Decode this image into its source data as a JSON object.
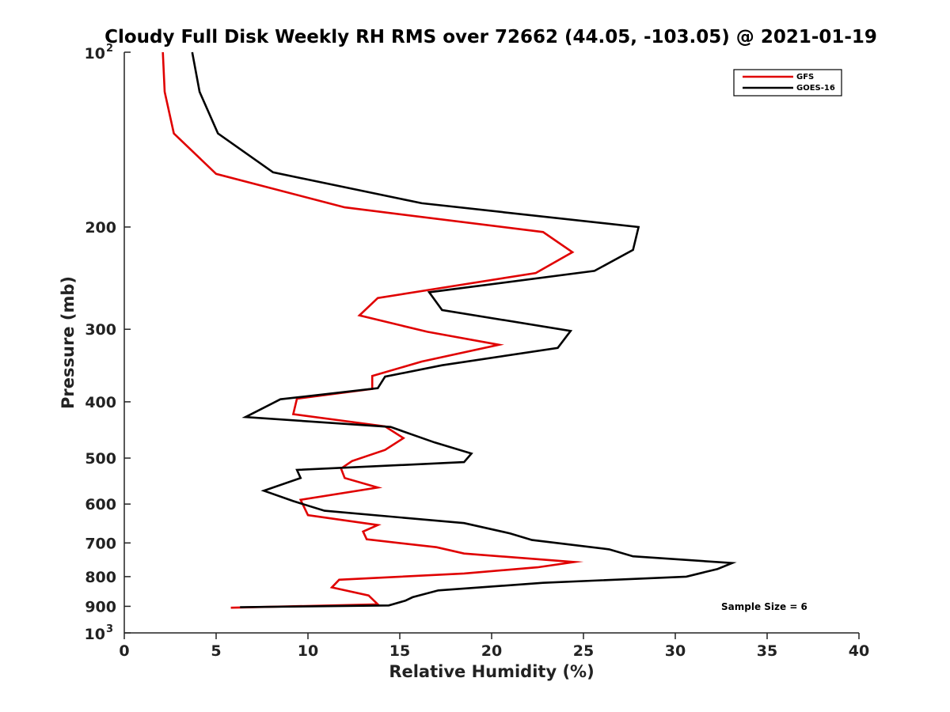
{
  "chart_data": {
    "type": "line",
    "title": "Cloudy Full Disk Weekly RH RMS over 72662 (44.05, -103.05) @ 2021-01-19",
    "xlabel": "Relative Humidity (%)",
    "ylabel": "Pressure (mb)",
    "xlim": [
      0,
      40
    ],
    "ylim": [
      100,
      1000
    ],
    "y_scale": "log",
    "y_reversed": true,
    "x_ticks": [
      "0",
      "5",
      "10",
      "15",
      "20",
      "25",
      "30",
      "35",
      "40"
    ],
    "x_tick_values": [
      0,
      5,
      10,
      15,
      20,
      25,
      30,
      35,
      40
    ],
    "y_ticks": [
      {
        "value": 100,
        "base": "10",
        "exp": "2"
      },
      {
        "value": 200,
        "label": "200"
      },
      {
        "value": 300,
        "label": "300"
      },
      {
        "value": 400,
        "label": "400"
      },
      {
        "value": 500,
        "label": "500"
      },
      {
        "value": 600,
        "label": "600"
      },
      {
        "value": 700,
        "label": "700"
      },
      {
        "value": 800,
        "label": "800"
      },
      {
        "value": 900,
        "label": "900"
      },
      {
        "value": 1000,
        "base": "10",
        "exp": "3"
      }
    ],
    "legend_position": "top-right",
    "annotation": "Sample Size = 6",
    "series": [
      {
        "name": "GFS",
        "color": "#e00000",
        "points": [
          [
            2.1,
            100
          ],
          [
            2.2,
            117
          ],
          [
            2.7,
            138
          ],
          [
            5.0,
            162
          ],
          [
            12.0,
            185
          ],
          [
            22.8,
            204
          ],
          [
            24.4,
            221
          ],
          [
            22.4,
            240
          ],
          [
            13.8,
            265
          ],
          [
            12.8,
            284
          ],
          [
            16.5,
            303
          ],
          [
            20.4,
            319
          ],
          [
            16.2,
            341
          ],
          [
            13.5,
            361
          ],
          [
            13.5,
            380
          ],
          [
            9.4,
            395
          ],
          [
            9.2,
            420
          ],
          [
            14.2,
            441
          ],
          [
            15.2,
            462
          ],
          [
            14.2,
            484
          ],
          [
            12.4,
            506
          ],
          [
            11.8,
            521
          ],
          [
            12.0,
            541
          ],
          [
            13.8,
            562
          ],
          [
            9.6,
            590
          ],
          [
            10.0,
            627
          ],
          [
            13.8,
            652
          ],
          [
            13.0,
            669
          ],
          [
            13.2,
            690
          ],
          [
            17.0,
            712
          ],
          [
            18.5,
            730
          ],
          [
            24.5,
            755
          ],
          [
            22.5,
            771
          ],
          [
            18.5,
            790
          ],
          [
            11.7,
            810
          ],
          [
            11.3,
            835
          ],
          [
            13.3,
            862
          ],
          [
            13.8,
            893
          ],
          [
            5.8,
            905
          ]
        ]
      },
      {
        "name": "GOES-16",
        "color": "#000000",
        "points": [
          [
            3.7,
            100
          ],
          [
            4.1,
            117
          ],
          [
            5.1,
            138
          ],
          [
            8.1,
            161
          ],
          [
            16.2,
            182
          ],
          [
            28.0,
            200
          ],
          [
            27.7,
            219
          ],
          [
            25.6,
            238
          ],
          [
            16.6,
            259
          ],
          [
            17.3,
            278
          ],
          [
            24.3,
            302
          ],
          [
            23.6,
            323
          ],
          [
            17.3,
            346
          ],
          [
            14.2,
            362
          ],
          [
            13.8,
            379
          ],
          [
            8.5,
            396
          ],
          [
            6.6,
            425
          ],
          [
            14.5,
            442
          ],
          [
            16.9,
            470
          ],
          [
            18.9,
            491
          ],
          [
            18.5,
            508
          ],
          [
            9.4,
            524
          ],
          [
            9.6,
            541
          ],
          [
            7.6,
            569
          ],
          [
            9.2,
            593
          ],
          [
            10.9,
            616
          ],
          [
            18.5,
            647
          ],
          [
            21.0,
            674
          ],
          [
            22.2,
            692
          ],
          [
            26.4,
            718
          ],
          [
            27.7,
            738
          ],
          [
            33.1,
            758
          ],
          [
            32.3,
            776
          ],
          [
            30.6,
            800
          ],
          [
            22.8,
            820
          ],
          [
            17.1,
            845
          ],
          [
            15.7,
            868
          ],
          [
            15.3,
            880
          ],
          [
            14.4,
            897
          ],
          [
            6.3,
            903
          ]
        ]
      }
    ]
  }
}
